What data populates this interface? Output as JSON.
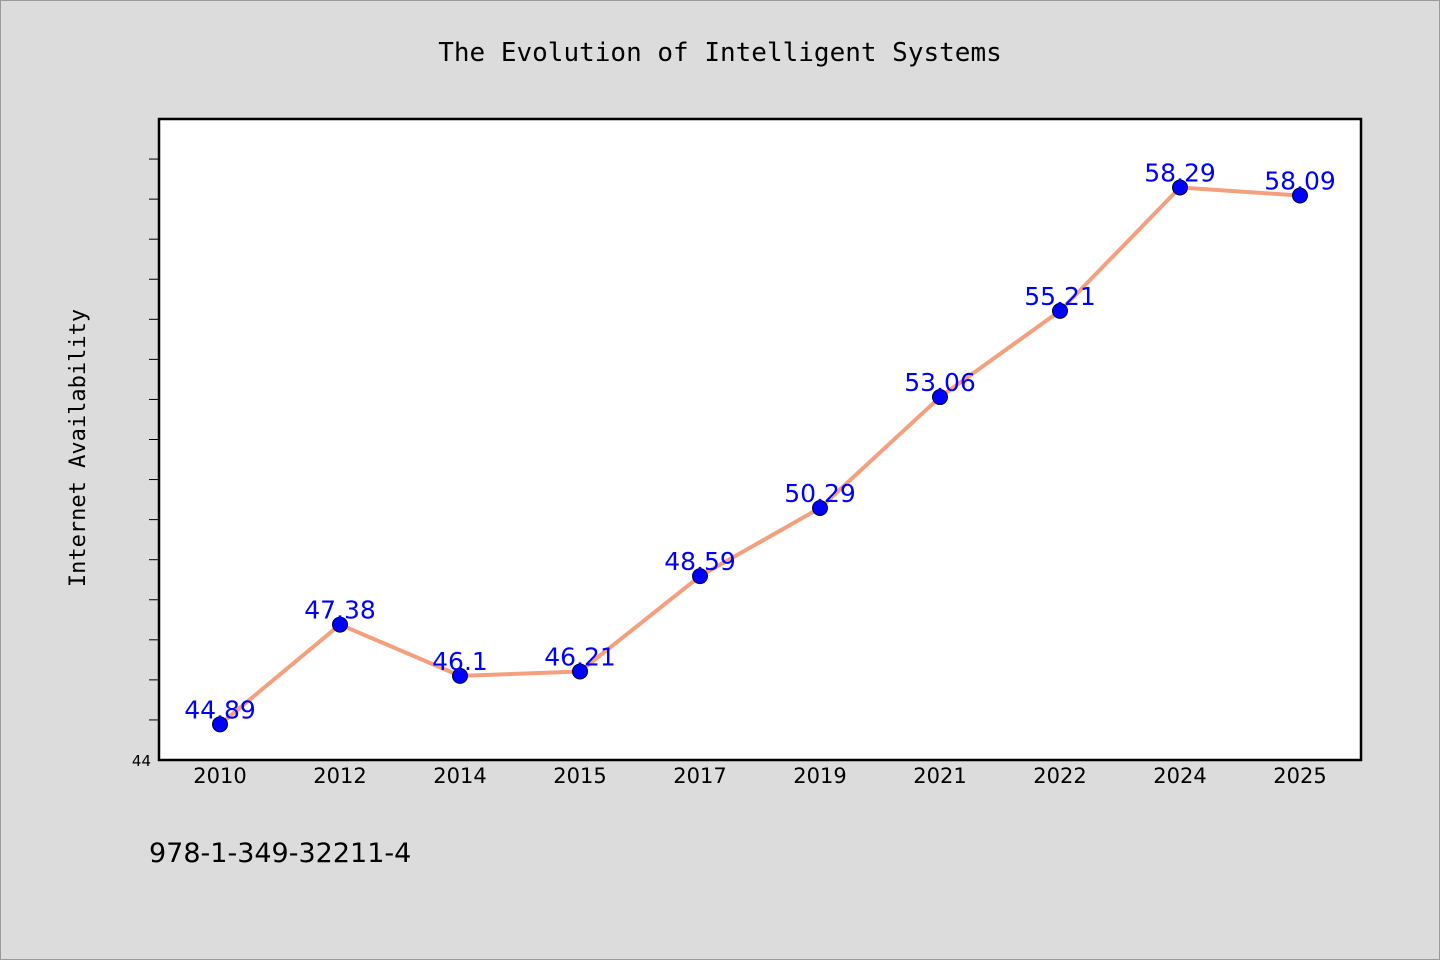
{
  "chart_data": {
    "type": "line",
    "title": "The Evolution of Intelligent Systems",
    "xlabel": "",
    "ylabel": "Internet Availability",
    "categories": [
      "2010",
      "2012",
      "2014",
      "2015",
      "2017",
      "2019",
      "2021",
      "2022",
      "2024",
      "2025"
    ],
    "series": [
      {
        "values": [
          44.89,
          47.38,
          46.1,
          46.21,
          48.59,
          50.29,
          53.06,
          55.21,
          58.29,
          58.09
        ],
        "labels": [
          "44.89",
          "47.38",
          "46.1",
          "46.21",
          "48.59",
          "50.29",
          "53.06",
          "55.21",
          "58.29",
          "58.09"
        ],
        "line_color": "#f4a07e",
        "marker_color": "#0000ff"
      }
    ],
    "ylim": [
      44,
      60
    ],
    "y_tick_labels": [
      "44"
    ],
    "grid": false,
    "legend": "none"
  },
  "footer": {
    "isbn": "978-1-349-32211-4"
  }
}
